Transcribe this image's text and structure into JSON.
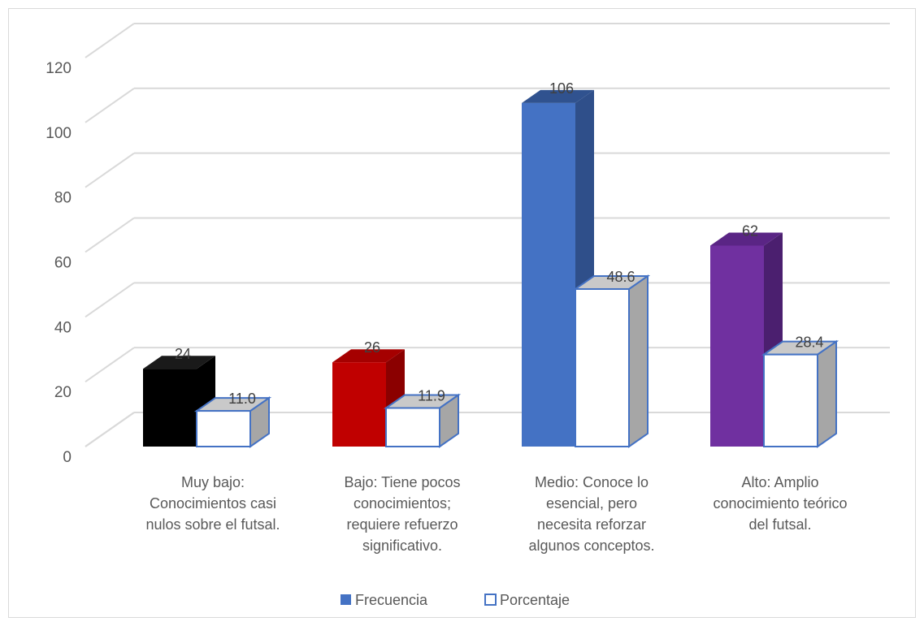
{
  "chart_data": {
    "type": "bar",
    "title": "",
    "xlabel": "",
    "ylabel": "",
    "ylim": [
      0,
      120
    ],
    "yticks": [
      0,
      20,
      40,
      60,
      80,
      100,
      120
    ],
    "grid": true,
    "legend_position": "bottom",
    "categories": [
      [
        "Muy bajo:",
        "Conocimientos casi",
        "nulos sobre el futsal."
      ],
      [
        "Bajo: Tiene pocos",
        "conocimientos;",
        "requiere refuerzo",
        "significativo."
      ],
      [
        "Medio: Conoce lo",
        "esencial, pero",
        "necesita reforzar",
        "algunos conceptos."
      ],
      [
        "Alto: Amplio",
        "conocimiento teórico",
        "del futsal."
      ]
    ],
    "series": [
      {
        "name": "Frecuencia",
        "values": [
          24,
          26,
          106,
          62
        ],
        "labels": [
          "24",
          "26",
          "106",
          "62"
        ],
        "colors": [
          "#000000",
          "#c00000",
          "#4472c4",
          "#7030a0"
        ],
        "side_colors": [
          "#000000",
          "#8b0000",
          "#2f4f8a",
          "#4b1f6f"
        ],
        "top_colors": [
          "#1a1a1a",
          "#a50000",
          "#30528f",
          "#5a2585"
        ],
        "legend_color": "#4472c4"
      },
      {
        "name": "Porcentaje",
        "values": [
          11.0,
          11.9,
          48.6,
          28.4
        ],
        "labels": [
          "11.0",
          "11.9",
          "48.6",
          "28.4"
        ],
        "fill": "#ffffff",
        "stroke": "#4472c4",
        "side_color": "#a6a6a6",
        "top_color": "#c9c9c9"
      }
    ]
  }
}
